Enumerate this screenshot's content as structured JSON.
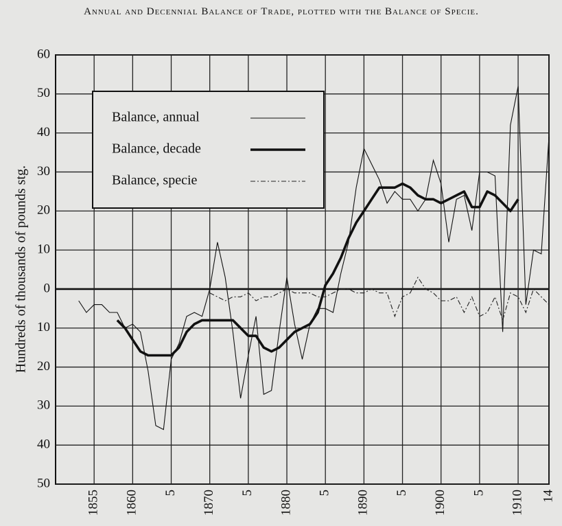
{
  "chart_data": {
    "type": "line",
    "title": "Annual and Decennial Balance of Trade, plotted with the Balance of Specie.",
    "ylabel": "Hundreds of thousands of pounds stg.",
    "x": [
      1853,
      1854,
      1855,
      1856,
      1857,
      1858,
      1859,
      1860,
      1861,
      1862,
      1863,
      1864,
      1865,
      1866,
      1867,
      1868,
      1869,
      1870,
      1871,
      1872,
      1873,
      1874,
      1875,
      1876,
      1877,
      1878,
      1879,
      1880,
      1881,
      1882,
      1883,
      1884,
      1885,
      1886,
      1887,
      1888,
      1889,
      1890,
      1891,
      1892,
      1893,
      1894,
      1895,
      1896,
      1897,
      1898,
      1899,
      1900,
      1901,
      1902,
      1903,
      1904,
      1905,
      1906,
      1907,
      1908,
      1909,
      1910,
      1911,
      1912,
      1913,
      1914
    ],
    "series": [
      {
        "name": "Balance, annual",
        "color": "#111111",
        "values": [
          -3,
          -6,
          -4,
          -4,
          -6,
          -6,
          -10,
          -9,
          -11,
          -21,
          -35,
          -36,
          -18,
          -14,
          -7,
          -6,
          -7,
          0,
          12,
          3,
          -11,
          -28,
          -17,
          -7,
          -27,
          -26,
          -11,
          3,
          -9,
          -18,
          -9,
          -5,
          -5,
          -6,
          4,
          12,
          26,
          36,
          32,
          28,
          22,
          25,
          23,
          23,
          20,
          23,
          33,
          27,
          12,
          23,
          24,
          15,
          30,
          30,
          29,
          -11,
          42,
          52,
          -4,
          10,
          9,
          39
        ]
      },
      {
        "name": "Balance, decade",
        "color": "#111111",
        "values": [
          null,
          null,
          null,
          null,
          null,
          -8,
          -10,
          -13,
          -16,
          -17,
          -17,
          -17,
          -17,
          -15,
          -11,
          -9,
          -8,
          -8,
          -8,
          -8,
          -8,
          -10,
          -12,
          -12,
          -15,
          -16,
          -15,
          -13,
          -11,
          -10,
          -9,
          -6,
          1,
          4,
          8,
          13,
          17,
          20,
          23,
          26,
          26,
          26,
          27,
          26,
          24,
          23,
          23,
          22,
          23,
          24,
          25,
          21,
          21,
          25,
          24,
          22,
          20,
          23,
          null,
          null,
          null,
          null
        ]
      },
      {
        "name": "Balance, specie",
        "color": "#222222",
        "values": [
          null,
          null,
          null,
          null,
          null,
          null,
          null,
          null,
          null,
          null,
          null,
          null,
          null,
          null,
          null,
          null,
          null,
          -1,
          -2,
          -3,
          -2,
          -2,
          -1,
          -3,
          -2,
          -2,
          -1,
          0,
          -1,
          -1,
          -1,
          -2,
          -2,
          -1,
          0,
          0,
          -1,
          -1,
          0,
          -1,
          -1,
          -7,
          -2,
          -1,
          3,
          0,
          -1,
          -3,
          -3,
          -2,
          -6,
          -2,
          -7,
          -6,
          -2,
          -8,
          -1,
          -2,
          -6,
          0,
          -2,
          -4
        ]
      }
    ],
    "xlim": [
      1850,
      1914
    ],
    "xticks": [
      1855,
      1860,
      {
        "value": 1865,
        "label": "5"
      },
      1870,
      {
        "value": 1875,
        "label": "5"
      },
      1880,
      {
        "value": 1885,
        "label": "5"
      },
      1890,
      {
        "value": 1895,
        "label": "5"
      },
      1900,
      {
        "value": 1905,
        "label": "5"
      },
      1910,
      {
        "value": 1914,
        "label": "14"
      }
    ],
    "ylim": [
      -50,
      60
    ],
    "yticks": [
      {
        "value": -50,
        "label": "50"
      },
      {
        "value": -40,
        "label": "40"
      },
      {
        "value": -30,
        "label": "30"
      },
      {
        "value": -20,
        "label": "20"
      },
      {
        "value": -10,
        "label": "10"
      },
      0,
      10,
      20,
      30,
      40,
      50,
      60
    ],
    "grid": true
  }
}
